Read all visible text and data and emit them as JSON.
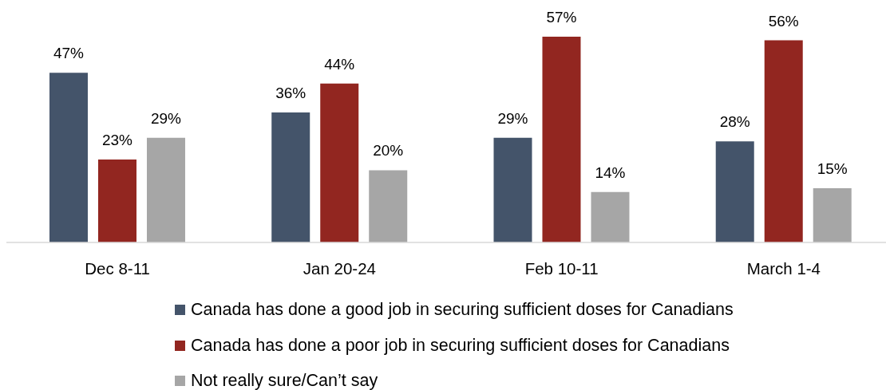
{
  "chart_data": {
    "type": "bar",
    "categories": [
      "Dec 8-11",
      "Jan 20-24",
      "Feb 10-11",
      "March 1-4"
    ],
    "series": [
      {
        "name": "Canada has done a good job in securing sufficient doses for Canadians",
        "color": "#44546a",
        "values": [
          47,
          36,
          29,
          28
        ],
        "value_labels": [
          "47%",
          "36%",
          "29%",
          "28%"
        ]
      },
      {
        "name": "Canada has done a poor job in securing sufficient doses for Canadians",
        "color": "#922620",
        "values": [
          23,
          44,
          57,
          56
        ],
        "value_labels": [
          "23%",
          "44%",
          "57%",
          "56%"
        ]
      },
      {
        "name": "Not really sure/Can’t say",
        "color": "#a6a6a6",
        "values": [
          29,
          20,
          14,
          15
        ],
        "value_labels": [
          "29%",
          "20%",
          "14%",
          "15%"
        ]
      }
    ],
    "legend": "bottom"
  }
}
